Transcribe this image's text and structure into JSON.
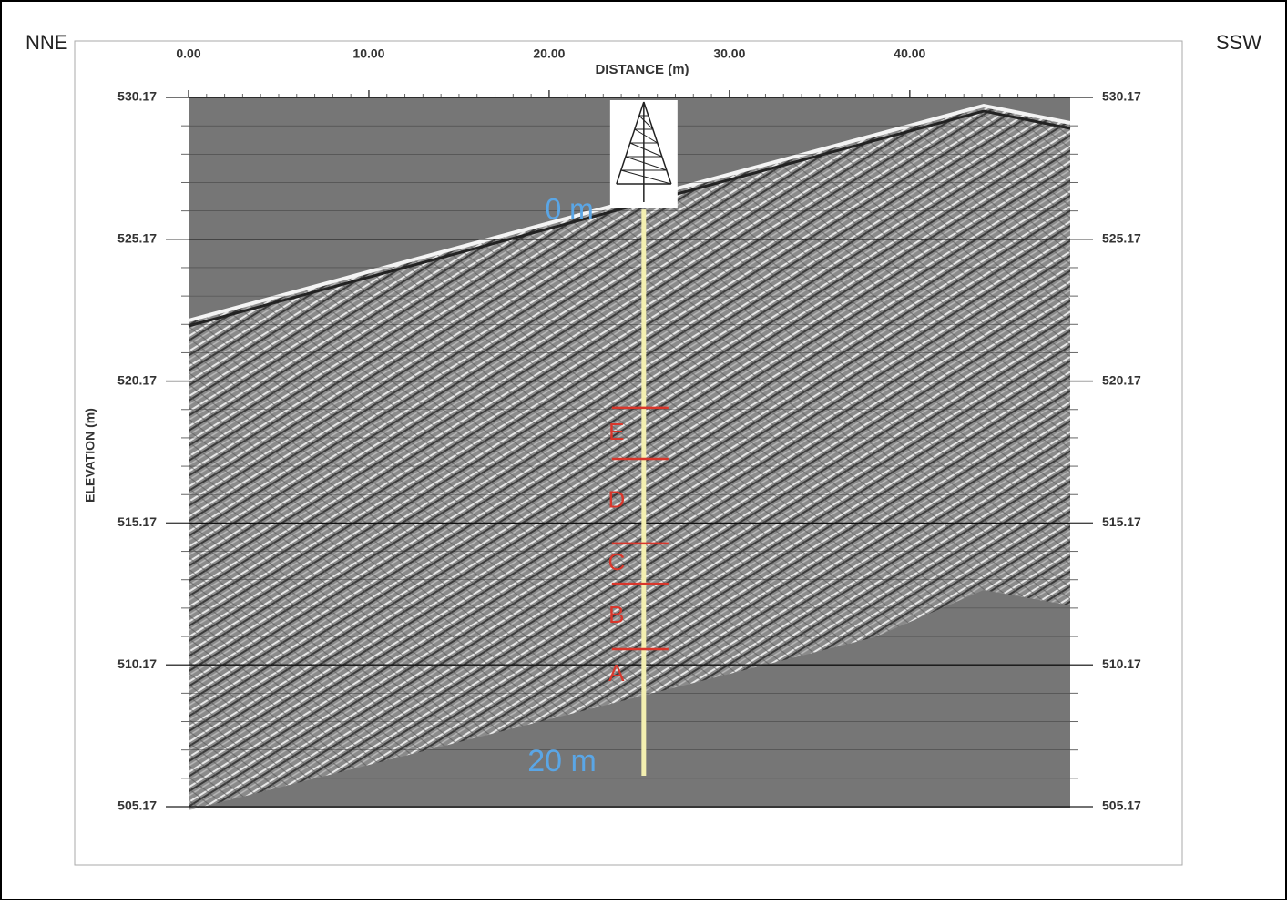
{
  "chart_data": {
    "type": "radargram",
    "x_label": "DISTANCE (m)",
    "y_label": "ELEVATION (m)",
    "left_annotation": "NNE",
    "right_annotation": "SSW",
    "xlim": [
      0,
      48.9
    ],
    "xticks": [
      {
        "value": 0,
        "label": "0.00"
      },
      {
        "value": 10,
        "label": "10.00"
      },
      {
        "value": 20,
        "label": "20.00"
      },
      {
        "value": 30,
        "label": "30.00"
      },
      {
        "value": 40,
        "label": "40.00"
      }
    ],
    "ylim": [
      505.17,
      530.17
    ],
    "yticks": [
      505.17,
      510.17,
      515.17,
      520.17,
      525.17,
      530.17
    ],
    "grid": true,
    "borehole": {
      "x": 25.25,
      "top": 526.22,
      "bottom": 506.26,
      "top_label": "0 m",
      "bottom_label": "20 m",
      "color": "#f3efb0",
      "label_color": "#5aa6e6"
    },
    "boundaries": [
      519.23,
      517.43,
      514.45,
      513.03,
      510.72
    ],
    "layer_labels": [
      "E",
      "D",
      "C",
      "B",
      "A"
    ],
    "layer_color": "#d9362b"
  }
}
